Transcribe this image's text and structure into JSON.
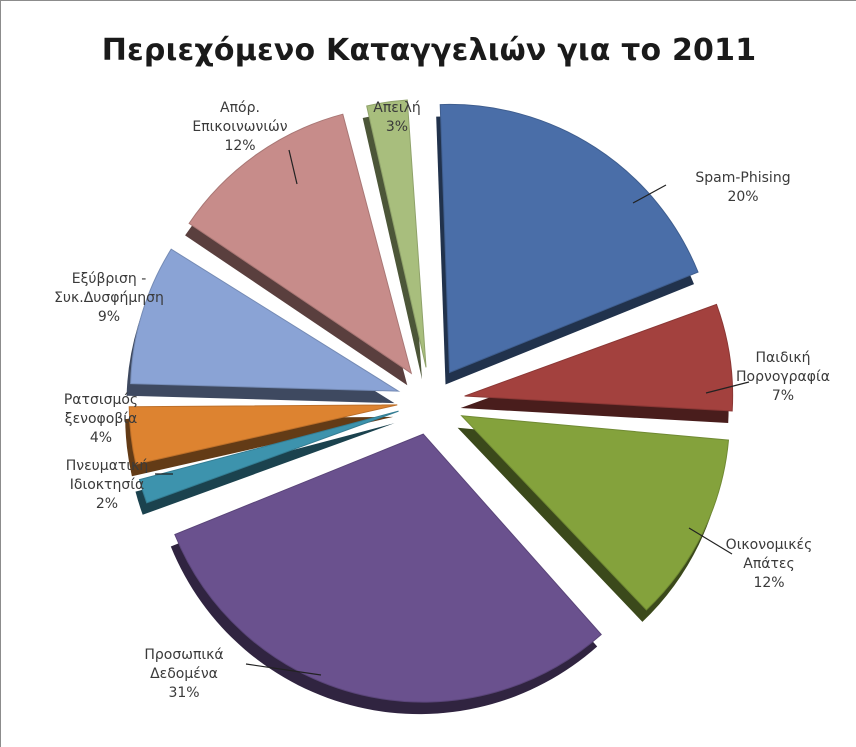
{
  "chart_data": {
    "type": "pie",
    "title": "Περιεχόμενο Καταγγελιών για το 2011",
    "exploded": true,
    "style": "3d",
    "slices": [
      {
        "label": [
          "Spam-Phising"
        ],
        "pct_label": "20%",
        "value": 20,
        "color": "#4a6ea8"
      },
      {
        "label": [
          "Παιδική",
          "Πορνογραφία"
        ],
        "pct_label": "7%",
        "value": 7,
        "color": "#a3413e"
      },
      {
        "label": [
          "Οικονομικές",
          "Απάτες"
        ],
        "pct_label": "12%",
        "value": 12,
        "color": "#84a23c"
      },
      {
        "label": [
          "Προσωπικά",
          "Δεδομένα"
        ],
        "pct_label": "31%",
        "value": 31,
        "color": "#6a518e"
      },
      {
        "label": [
          "Πνευματική",
          "Ιδιοκτησία"
        ],
        "pct_label": "2%",
        "value": 2,
        "color": "#3d93ad"
      },
      {
        "label": [
          "Ρατσισμός",
          "ξενοφοβία"
        ],
        "pct_label": "4%",
        "value": 4,
        "color": "#dd8330"
      },
      {
        "label": [
          "Εξύβριση -",
          "Συκ.Δυσφήμηση"
        ],
        "pct_label": "9%",
        "value": 9,
        "color": "#8aa3d5"
      },
      {
        "label": [
          "Απόρ.",
          "Επικοινωνιών"
        ],
        "pct_label": "12%",
        "value": 12,
        "color": "#c78c8a"
      },
      {
        "label": [
          "Απειλή"
        ],
        "pct_label": "3%",
        "value": 3,
        "color": "#a8be7d"
      }
    ]
  }
}
